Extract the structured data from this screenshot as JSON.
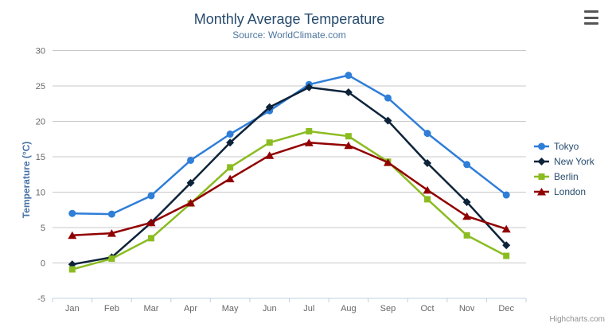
{
  "chart_data": {
    "type": "line",
    "title": "Monthly Average Temperature",
    "subtitle": "Source: WorldClimate.com",
    "xlabel": "",
    "ylabel": "Temperature (°C)",
    "categories": [
      "Jan",
      "Feb",
      "Mar",
      "Apr",
      "May",
      "Jun",
      "Jul",
      "Aug",
      "Sep",
      "Oct",
      "Nov",
      "Dec"
    ],
    "yticks": [
      30,
      25,
      20,
      15,
      10,
      5,
      0,
      -5
    ],
    "ylim": [
      -5,
      30
    ],
    "grid": true,
    "legend_position": "right",
    "series": [
      {
        "name": "Tokyo",
        "color": "#2f7ed8",
        "marker": "circle",
        "values": [
          7.0,
          6.9,
          9.5,
          14.5,
          18.2,
          21.5,
          25.2,
          26.5,
          23.3,
          18.3,
          13.9,
          9.6
        ]
      },
      {
        "name": "New York",
        "color": "#0d233a",
        "marker": "diamond",
        "values": [
          -0.2,
          0.8,
          5.7,
          11.3,
          17.0,
          22.0,
          24.8,
          24.1,
          20.1,
          14.1,
          8.6,
          2.5
        ]
      },
      {
        "name": "Berlin",
        "color": "#8bbc21",
        "marker": "square",
        "values": [
          -0.9,
          0.6,
          3.5,
          8.4,
          13.5,
          17.0,
          18.6,
          17.9,
          14.3,
          9.0,
          3.9,
          1.0
        ]
      },
      {
        "name": "London",
        "color": "#910000",
        "marker": "triangle",
        "values": [
          3.9,
          4.2,
          5.7,
          8.5,
          11.9,
          15.2,
          17.0,
          16.6,
          14.2,
          10.3,
          6.6,
          4.8
        ]
      }
    ],
    "credits": "Highcharts.com",
    "colors": {
      "grid_line": "#c8c8c8",
      "axis_line": "#c0d0e0",
      "tick_label": "#666666",
      "title": "#274b6d",
      "subtitle": "#4d759e",
      "y_axis_title": "#4572a7",
      "legend_text": "#274b6d"
    }
  },
  "ui": {
    "context_menu_icon": "hamburger-icon"
  }
}
